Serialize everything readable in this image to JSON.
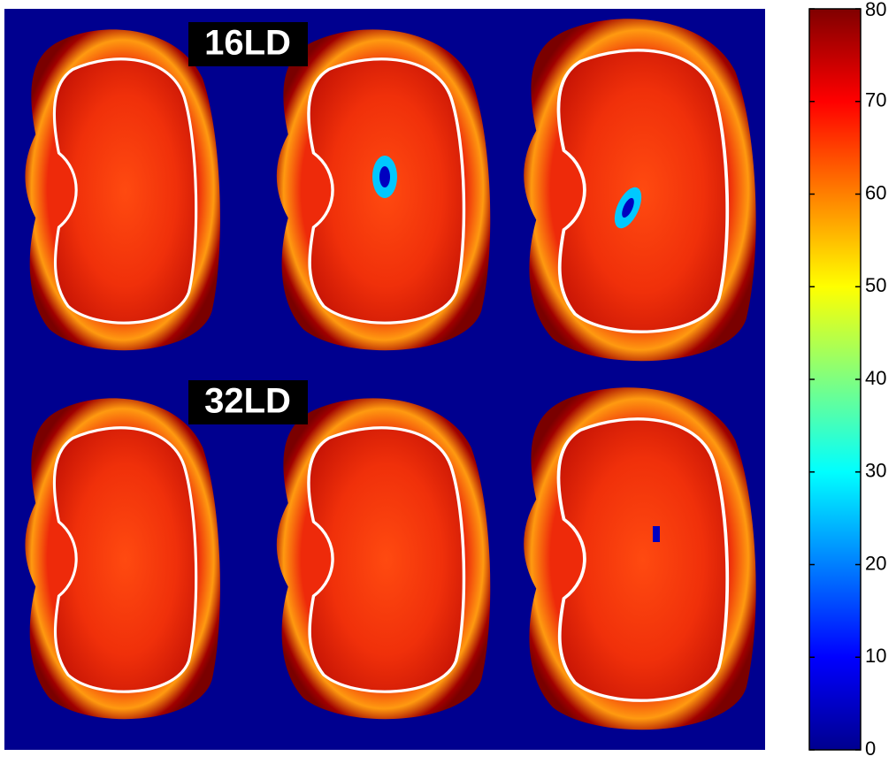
{
  "labels": [
    "16LD",
    "32LD"
  ],
  "colorbar": {
    "lim": [
      0,
      80
    ],
    "ticks": [
      0,
      10,
      20,
      30,
      40,
      50,
      60,
      70,
      80
    ]
  }
}
